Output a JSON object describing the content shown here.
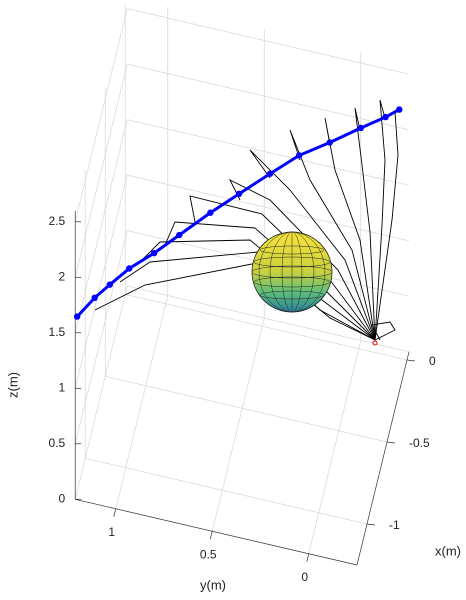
{
  "chart_data": {
    "type": "line3d",
    "xlabel": "x(m)",
    "ylabel": "y(m)",
    "zlabel": "z(m)",
    "xlim": [
      -1.25,
      0.05
    ],
    "ylim": [
      -0.25,
      1.21
    ],
    "zlim": [
      0,
      2.6
    ],
    "xticks": [
      -1,
      -0.5,
      0
    ],
    "yticks": [
      0,
      0.5,
      1
    ],
    "zticks": [
      0,
      0.5,
      1,
      1.5,
      2,
      2.5
    ],
    "grid": true,
    "series": [
      {
        "color": "#0000ff",
        "x": [
          -1.25,
          -1.15,
          -1.06,
          -0.96,
          -0.87,
          -0.77,
          -0.67,
          -0.58,
          -0.48,
          -0.38,
          -0.29,
          -0.19,
          -0.1,
          0
        ],
        "y": [
          1.2,
          1.13,
          1.07,
          0.99,
          0.88,
          0.77,
          0.63,
          0.5,
          0.36,
          0.23,
          0.09,
          -0.05,
          -0.16,
          -0.21
        ],
        "z": [
          1.65,
          1.7,
          1.71,
          1.74,
          1.79,
          1.85,
          1.96,
          2.05,
          2.14,
          2.21,
          2.25,
          2.29,
          2.3,
          2.24
        ]
      }
    ]
  }
}
